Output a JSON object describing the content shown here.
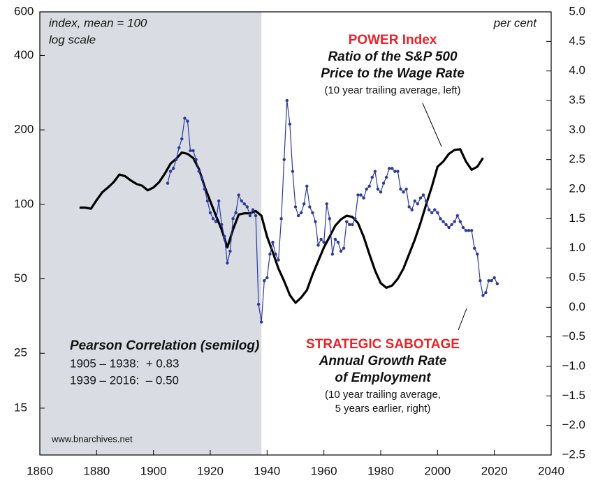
{
  "chart_data": {
    "type": "line",
    "xlim": [
      1860,
      2040
    ],
    "xticks": [
      1860,
      1880,
      1900,
      1920,
      1940,
      1960,
      1980,
      2000,
      2020,
      2040
    ],
    "ylim": [
      9.7,
      600
    ],
    "yticks": [
      600,
      400,
      200,
      100,
      50,
      25,
      15
    ],
    "log_scale": true,
    "y2lim": [
      -2.5,
      5.0
    ],
    "y2ticks": [
      {
        "value": 5.0,
        "label": "5.0"
      },
      {
        "value": 4.5,
        "label": "4.5"
      },
      {
        "value": 4.0,
        "label": "4.0"
      },
      {
        "value": 3.5,
        "label": "3.5"
      },
      {
        "value": 3.0,
        "label": "3.0"
      },
      {
        "value": 2.5,
        "label": "2.5"
      },
      {
        "value": 2.0,
        "label": "2.0"
      },
      {
        "value": 1.5,
        "label": "1.5"
      },
      {
        "value": 1.0,
        "label": "1.0"
      },
      {
        "value": 0.5,
        "label": "0.5"
      },
      {
        "value": 0.0,
        "label": "0.0"
      },
      {
        "value": -0.5,
        "label": "−0.5"
      },
      {
        "value": -1.0,
        "label": "−1.0"
      },
      {
        "value": -1.5,
        "label": "−1.5"
      },
      {
        "value": -2.0,
        "label": "−2.0"
      },
      {
        "value": -2.5,
        "label": "−2.5"
      }
    ],
    "shaded_xlim": [
      1860,
      1938
    ],
    "shade_color": "#d9dde3",
    "left_axis_label": [
      "index, mean = 100",
      "log scale"
    ],
    "right_axis_label": "per cent",
    "series": [
      {
        "name": "POWER Index",
        "color": "#000000",
        "axis": "y",
        "subtitle": [
          "Ratio of the S&P 500",
          "Price to the Wage Rate"
        ],
        "note": "(10 year trailing average, left)",
        "x": [
          1874,
          1876,
          1878,
          1880,
          1882,
          1884,
          1886,
          1888,
          1890,
          1892,
          1894,
          1896,
          1898,
          1900,
          1902,
          1904,
          1906,
          1908,
          1910,
          1912,
          1914,
          1916,
          1918,
          1920,
          1922,
          1924,
          1926,
          1928,
          1930,
          1932,
          1934,
          1936,
          1938,
          1940,
          1942,
          1944,
          1946,
          1948,
          1950,
          1952,
          1954,
          1956,
          1958,
          1960,
          1962,
          1964,
          1966,
          1968,
          1970,
          1972,
          1974,
          1976,
          1978,
          1980,
          1982,
          1984,
          1986,
          1988,
          1990,
          1992,
          1994,
          1996,
          1998,
          2000,
          2002,
          2004,
          2006,
          2008,
          2010,
          2012,
          2014,
          2016
        ],
        "values": [
          97,
          97,
          96,
          104,
          112,
          117,
          123,
          132,
          130,
          125,
          121,
          119,
          114,
          117,
          123,
          133,
          146,
          153,
          162,
          160,
          154,
          139,
          118,
          103,
          90,
          79,
          67,
          79,
          91,
          92,
          92,
          94,
          90,
          74,
          64,
          55,
          49,
          43,
          40,
          42,
          45,
          52,
          59,
          67,
          74,
          82,
          87,
          90,
          89,
          84,
          74,
          63,
          54,
          48,
          46,
          47,
          50,
          55,
          63,
          72,
          84,
          100,
          118,
          142,
          149,
          160,
          166,
          167,
          149,
          138,
          142,
          154
        ]
      },
      {
        "name": "STRATEGIC SABOTAGE",
        "color": "#2b3a9a",
        "axis": "y2",
        "subtitle": [
          "Annual Growth Rate",
          "of Employment"
        ],
        "note": [
          "(10 year trailing average,",
          "5 years earlier, right)"
        ],
        "x": [
          1905,
          1906,
          1907,
          1908,
          1909,
          1910,
          1911,
          1912,
          1913,
          1914,
          1915,
          1916,
          1917,
          1918,
          1919,
          1920,
          1921,
          1922,
          1923,
          1924,
          1925,
          1926,
          1927,
          1928,
          1929,
          1930,
          1931,
          1932,
          1933,
          1934,
          1935,
          1936,
          1937,
          1938,
          1939,
          1940,
          1941,
          1942,
          1943,
          1944,
          1945,
          1946,
          1947,
          1948,
          1949,
          1950,
          1951,
          1952,
          1953,
          1954,
          1955,
          1956,
          1957,
          1958,
          1959,
          1960,
          1961,
          1962,
          1963,
          1964,
          1965,
          1966,
          1967,
          1968,
          1969,
          1970,
          1971,
          1972,
          1973,
          1974,
          1975,
          1976,
          1977,
          1978,
          1979,
          1980,
          1981,
          1982,
          1983,
          1984,
          1985,
          1986,
          1987,
          1988,
          1989,
          1990,
          1991,
          1992,
          1993,
          1994,
          1995,
          1996,
          1997,
          1998,
          1999,
          2000,
          2001,
          2002,
          2003,
          2004,
          2005,
          2006,
          2007,
          2008,
          2009,
          2010,
          2011,
          2012,
          2013,
          2014,
          2015,
          2016,
          2017,
          2018,
          2019,
          2020,
          2021
        ],
        "values": [
          2.1,
          2.3,
          2.35,
          2.5,
          2.7,
          2.85,
          3.2,
          3.15,
          2.65,
          2.65,
          2.5,
          2.3,
          2.2,
          2.0,
          1.8,
          1.6,
          1.5,
          1.45,
          1.8,
          1.4,
          1.2,
          0.75,
          0.95,
          1.5,
          1.6,
          1.9,
          1.8,
          1.75,
          1.7,
          1.55,
          1.65,
          1.55,
          0.05,
          -0.25,
          0.45,
          0.5,
          0.9,
          1.1,
          0.9,
          0.8,
          1.5,
          2.5,
          3.5,
          3.1,
          2.3,
          1.7,
          1.55,
          1.6,
          1.75,
          2.05,
          1.7,
          1.6,
          1.45,
          1.05,
          1.15,
          1.1,
          1.75,
          1.5,
          0.9,
          1.15,
          1.1,
          0.95,
          1.0,
          1.45,
          1.4,
          1.4,
          1.5,
          1.9,
          1.9,
          1.85,
          2.0,
          2.05,
          2.2,
          2.3,
          2.0,
          1.95,
          2.1,
          2.2,
          2.35,
          2.35,
          2.3,
          2.3,
          2.0,
          1.95,
          2.0,
          1.7,
          1.65,
          1.8,
          1.75,
          1.85,
          1.9,
          1.8,
          1.65,
          1.6,
          1.65,
          1.6,
          1.5,
          1.45,
          1.4,
          1.35,
          1.4,
          1.45,
          1.55,
          1.45,
          1.35,
          1.3,
          1.3,
          1.3,
          1.0,
          0.9,
          0.45,
          0.2,
          0.25,
          0.45,
          0.45,
          0.5,
          0.4
        ]
      }
    ],
    "correlation": {
      "title": "Pearson Correlation (semilog)",
      "lines": [
        "1905 – 1938:  + 0.83",
        "1939 – 2016:  – 0.50"
      ]
    },
    "source": "www.bnarchives.net"
  }
}
